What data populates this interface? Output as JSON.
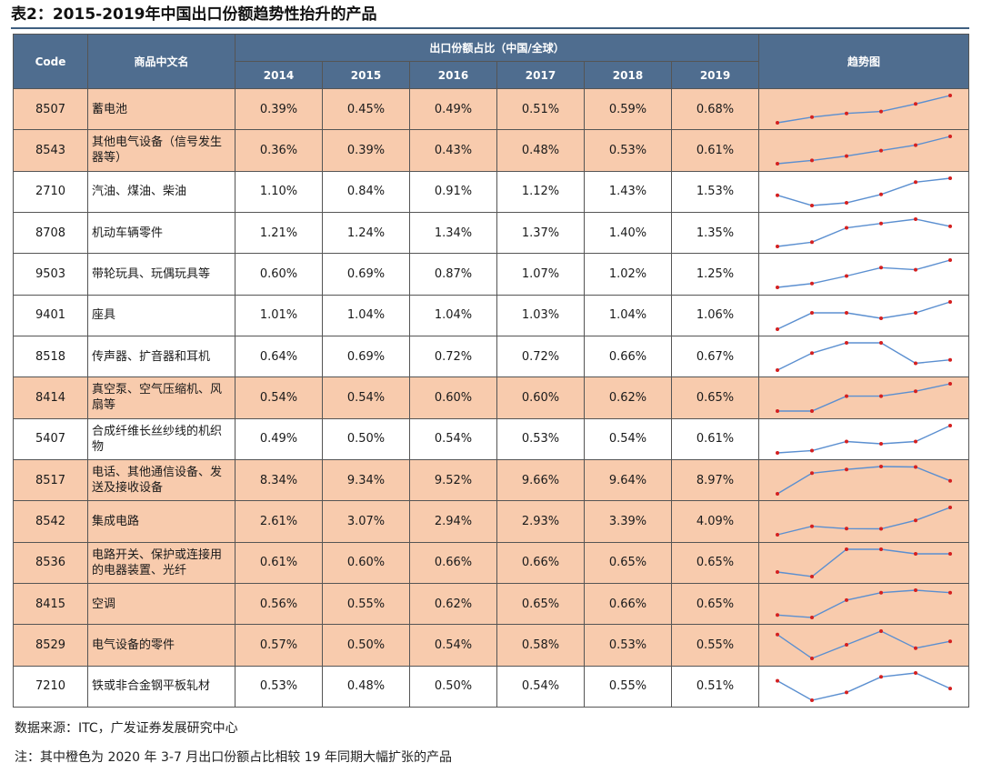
{
  "title": "表2：2015-2019年中国出口份额趋势性抬升的产品",
  "table": {
    "header": {
      "code": "Code",
      "name": "商品中文名",
      "group": "出口份额占比（中国/全球）",
      "years": [
        "2014",
        "2015",
        "2016",
        "2017",
        "2018",
        "2019"
      ],
      "trend": "趋势图"
    },
    "highlight_color": "#f8cbad",
    "header_color": "#4f6d8f",
    "trend_line_color": "#5b8fd0",
    "trend_point_color": "#d42020",
    "rows": [
      {
        "code": "8507",
        "name": "蓄电池",
        "highlight": true,
        "cells": [
          "0.39%",
          "0.45%",
          "0.49%",
          "0.51%",
          "0.59%",
          "0.68%"
        ],
        "values": [
          0.39,
          0.45,
          0.49,
          0.51,
          0.59,
          0.68
        ]
      },
      {
        "code": "8543",
        "name": "其他电气设备（信号发生器等）",
        "highlight": true,
        "cells": [
          "0.36%",
          "0.39%",
          "0.43%",
          "0.48%",
          "0.53%",
          "0.61%"
        ],
        "values": [
          0.36,
          0.39,
          0.43,
          0.48,
          0.53,
          0.61
        ]
      },
      {
        "code": "2710",
        "name": "汽油、煤油、柴油",
        "highlight": false,
        "cells": [
          "1.10%",
          "0.84%",
          "0.91%",
          "1.12%",
          "1.43%",
          "1.53%"
        ],
        "values": [
          1.1,
          0.84,
          0.91,
          1.12,
          1.43,
          1.53
        ]
      },
      {
        "code": "8708",
        "name": "机动车辆零件",
        "highlight": false,
        "cells": [
          "1.21%",
          "1.24%",
          "1.34%",
          "1.37%",
          "1.40%",
          "1.35%"
        ],
        "values": [
          1.21,
          1.24,
          1.34,
          1.37,
          1.4,
          1.35
        ]
      },
      {
        "code": "9503",
        "name": "带轮玩具、玩偶玩具等",
        "highlight": false,
        "cells": [
          "0.60%",
          "0.69%",
          "0.87%",
          "1.07%",
          "1.02%",
          "1.25%"
        ],
        "values": [
          0.6,
          0.69,
          0.87,
          1.07,
          1.02,
          1.25
        ]
      },
      {
        "code": "9401",
        "name": "座具",
        "highlight": false,
        "cells": [
          "1.01%",
          "1.04%",
          "1.04%",
          "1.03%",
          "1.04%",
          "1.06%"
        ],
        "values": [
          1.01,
          1.04,
          1.04,
          1.03,
          1.04,
          1.06
        ]
      },
      {
        "code": "8518",
        "name": "传声器、扩音器和耳机",
        "highlight": false,
        "cells": [
          "0.64%",
          "0.69%",
          "0.72%",
          "0.72%",
          "0.66%",
          "0.67%"
        ],
        "values": [
          0.64,
          0.69,
          0.72,
          0.72,
          0.66,
          0.67
        ]
      },
      {
        "code": "8414",
        "name": "真空泵、空气压缩机、风扇等",
        "highlight": true,
        "cells": [
          "0.54%",
          "0.54%",
          "0.60%",
          "0.60%",
          "0.62%",
          "0.65%"
        ],
        "values": [
          0.54,
          0.54,
          0.6,
          0.6,
          0.62,
          0.65
        ]
      },
      {
        "code": "5407",
        "name": "合成纤维长丝纱线的机织物",
        "highlight": false,
        "cells": [
          "0.49%",
          "0.50%",
          "0.54%",
          "0.53%",
          "0.54%",
          "0.61%"
        ],
        "values": [
          0.49,
          0.5,
          0.54,
          0.53,
          0.54,
          0.61
        ]
      },
      {
        "code": "8517",
        "name": "电话、其他通信设备、发送及接收设备",
        "highlight": true,
        "cells": [
          "8.34%",
          "9.34%",
          "9.52%",
          "9.66%",
          "9.64%",
          "8.97%"
        ],
        "values": [
          8.34,
          9.34,
          9.52,
          9.66,
          9.64,
          8.97
        ]
      },
      {
        "code": "8542",
        "name": "集成电路",
        "highlight": true,
        "cells": [
          "2.61%",
          "3.07%",
          "2.94%",
          "2.93%",
          "3.39%",
          "4.09%"
        ],
        "values": [
          2.61,
          3.07,
          2.94,
          2.93,
          3.39,
          4.09
        ]
      },
      {
        "code": "8536",
        "name": "电路开关、保护或连接用的电器装置、光纤",
        "highlight": true,
        "cells": [
          "0.61%",
          "0.60%",
          "0.66%",
          "0.66%",
          "0.65%",
          "0.65%"
        ],
        "values": [
          0.61,
          0.6,
          0.66,
          0.66,
          0.65,
          0.65
        ]
      },
      {
        "code": "8415",
        "name": "空调",
        "highlight": true,
        "cells": [
          "0.56%",
          "0.55%",
          "0.62%",
          "0.65%",
          "0.66%",
          "0.65%"
        ],
        "values": [
          0.56,
          0.55,
          0.62,
          0.65,
          0.66,
          0.65
        ]
      },
      {
        "code": "8529",
        "name": "电气设备的零件",
        "highlight": true,
        "cells": [
          "0.57%",
          "0.50%",
          "0.54%",
          "0.58%",
          "0.53%",
          "0.55%"
        ],
        "values": [
          0.57,
          0.5,
          0.54,
          0.58,
          0.53,
          0.55
        ]
      },
      {
        "code": "7210",
        "name": "铁或非合金钢平板轧材",
        "highlight": false,
        "cells": [
          "0.53%",
          "0.48%",
          "0.50%",
          "0.54%",
          "0.55%",
          "0.51%"
        ],
        "values": [
          0.53,
          0.48,
          0.5,
          0.54,
          0.55,
          0.51
        ]
      }
    ]
  },
  "source": "数据来源：ITC，广发证券发展研究中心",
  "note": "注：其中橙色为 2020 年 3-7 月出口份额占比相较 19 年同期大幅扩张的产品"
}
